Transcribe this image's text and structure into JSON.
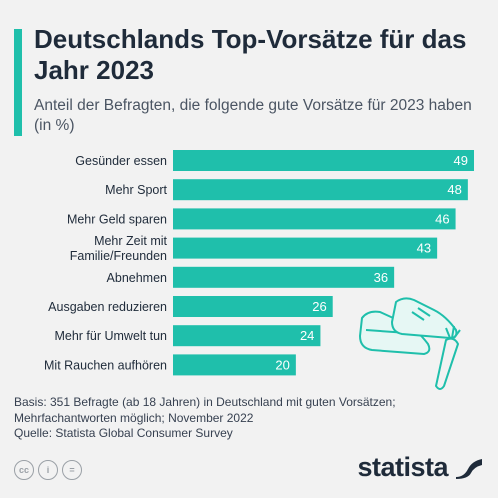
{
  "title": "Deutschlands Top-Vorsätze für das Jahr 2023",
  "subtitle": "Anteil der Befragten, die folgende gute Vorsätze für 2023 haben (in %)",
  "colors": {
    "bar": "#1fbfab",
    "accent": "#1fbfab",
    "text": "#1f2b3a",
    "background": "#f2f2f2"
  },
  "chart_data": {
    "type": "bar",
    "orientation": "horizontal",
    "categories": [
      [
        "Gesünder essen"
      ],
      [
        "Mehr Sport"
      ],
      [
        "Mehr Geld sparen"
      ],
      [
        "Mehr Zeit mit",
        "Familie/Freunden"
      ],
      [
        "Abnehmen"
      ],
      [
        "Ausgaben reduzieren"
      ],
      [
        "Mehr für Umwelt tun"
      ],
      [
        "Mit Rauchen aufhören"
      ]
    ],
    "values": [
      49,
      48,
      46,
      43,
      36,
      26,
      24,
      20
    ],
    "xlim": [
      0,
      49
    ],
    "grid": false,
    "legend": "none",
    "data_labels": true
  },
  "footnote": {
    "line1": "Basis: 351 Befragte (ab 18 Jahren) in Deutschland mit guten Vorsätzen;",
    "line2": "Mehrfachantworten möglich; November 2022",
    "line3": "Quelle: Statista Global Consumer Survey"
  },
  "icons": {
    "cc": "creative-commons-icon",
    "by": "attribution-icon",
    "nd": "no-derivatives-icon",
    "logo": "statista-logo-icon"
  },
  "cc_labels": {
    "cc": "cc",
    "by": "i",
    "nd": "="
  },
  "logo_text": "statista"
}
